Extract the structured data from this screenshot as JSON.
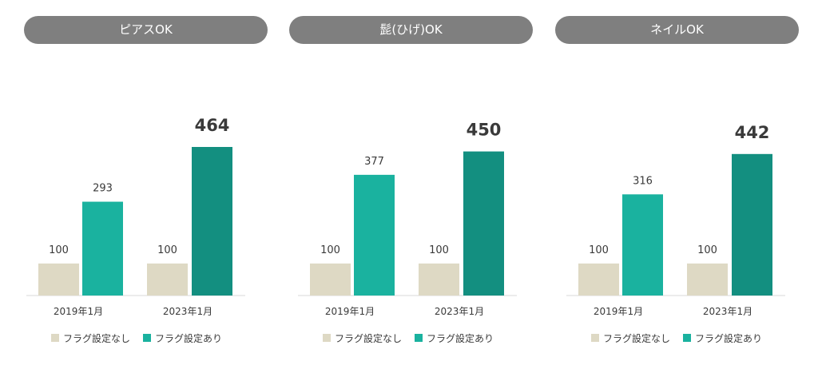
{
  "colors": {
    "pill_bg": "#7f7f7f",
    "baseline": "#d9d9d9",
    "no_flag": "#ded9c4",
    "flag_2019": "#1ab29f",
    "flag_2023": "#138f80",
    "big_label": "#138f80"
  },
  "legend": {
    "no_flag": "フラグ設定なし",
    "flag": "フラグ設定あり"
  },
  "chart_data": [
    {
      "type": "bar",
      "title": "ピアスOK",
      "categories": [
        "2019年1月",
        "2023年1月"
      ],
      "series": [
        {
          "name": "フラグ設定なし",
          "values": [
            100,
            100
          ]
        },
        {
          "name": "フラグ設定あり",
          "values": [
            293,
            464
          ]
        }
      ],
      "ylim": [
        0,
        500
      ],
      "legend_position": "bottom",
      "grid": false
    },
    {
      "type": "bar",
      "title": "髭(ひげ)OK",
      "categories": [
        "2019年1月",
        "2023年1月"
      ],
      "series": [
        {
          "name": "フラグ設定なし",
          "values": [
            100,
            100
          ]
        },
        {
          "name": "フラグ設定あり",
          "values": [
            377,
            450
          ]
        }
      ],
      "ylim": [
        0,
        500
      ],
      "legend_position": "bottom",
      "grid": false
    },
    {
      "type": "bar",
      "title": "ネイルOK",
      "categories": [
        "2019年1月",
        "2023年1月"
      ],
      "series": [
        {
          "name": "フラグ設定なし",
          "values": [
            100,
            100
          ]
        },
        {
          "name": "フラグ設定あり",
          "values": [
            316,
            442
          ]
        }
      ],
      "ylim": [
        0,
        500
      ],
      "legend_position": "bottom",
      "grid": false
    }
  ]
}
